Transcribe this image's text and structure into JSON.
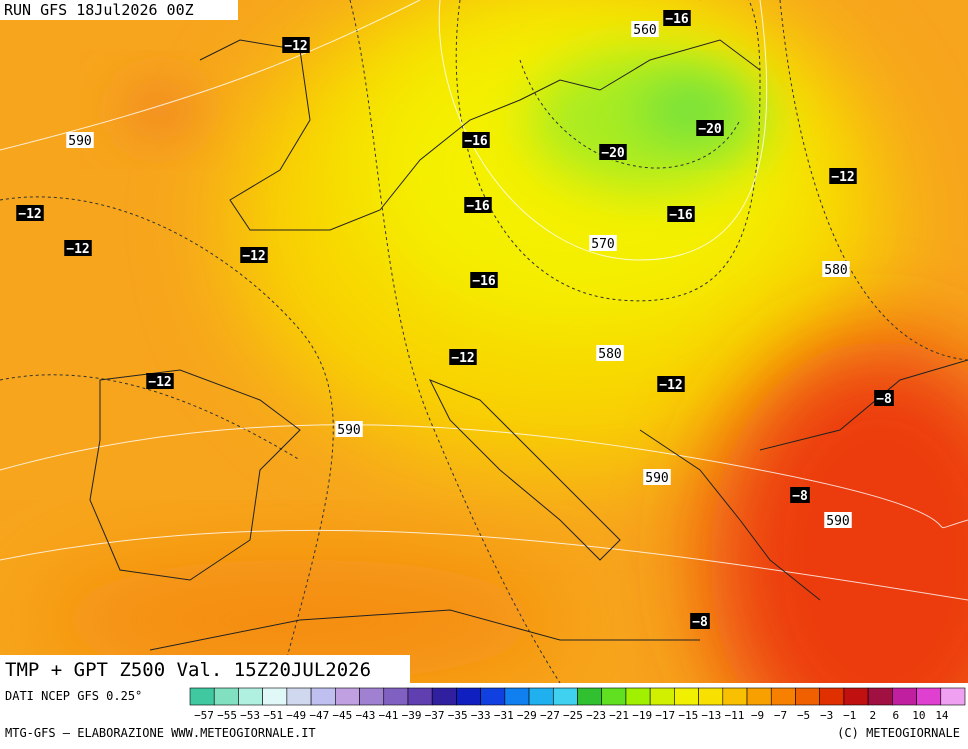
{
  "header": {
    "run": "RUN GFS 18Jul2026 00Z"
  },
  "map": {
    "title": "TMP + GPT Z500 Val. 15Z20JUL2026",
    "temperature_labels": [
      "−12",
      "−16",
      "−16",
      "−20",
      "−20",
      "−12",
      "−16",
      "−16",
      "−12",
      "−12",
      "−12",
      "−16",
      "−12",
      "−12",
      "−12",
      "−8",
      "−8",
      "−8"
    ],
    "height_labels": [
      "560",
      "590",
      "570",
      "580",
      "580",
      "590",
      "590",
      "590"
    ]
  },
  "footer": {
    "source": "DATI NCEP GFS 0.25°",
    "credit": "MTG-GFS — ELABORAZIONE WWW.METEOGIORNALE.IT",
    "copyright": "(C) METEOGIORNALE"
  },
  "colorbar": {
    "labels": [
      "−57",
      "−55",
      "−53",
      "−51",
      "−49",
      "−47",
      "−45",
      "−43",
      "−41",
      "−39",
      "−37",
      "−35",
      "−33",
      "−31",
      "−29",
      "−27",
      "−25",
      "−23",
      "−21",
      "−19",
      "−17",
      "−15",
      "−13",
      "−11",
      "−9",
      "−7",
      "−5",
      "−3",
      "−1",
      "2",
      "6",
      "10",
      "14"
    ],
    "colors": [
      "#40c8a0",
      "#80e0c0",
      "#b0f0e0",
      "#e0f8f8",
      "#d0d8f0",
      "#c0c0f0",
      "#c0a0e0",
      "#a080d0",
      "#8060c0",
      "#6040b0",
      "#3020a0",
      "#1020c0",
      "#1040e0",
      "#1080f0",
      "#20b0f0",
      "#40d0f0",
      "#30c030",
      "#60e020",
      "#a0f000",
      "#d0f000",
      "#f0f000",
      "#f8e000",
      "#f8c000",
      "#f8a000",
      "#f88000",
      "#f06000",
      "#e03000",
      "#c01010",
      "#a01040",
      "#c020a0",
      "#e040d0",
      "#f0a0f0"
    ]
  }
}
